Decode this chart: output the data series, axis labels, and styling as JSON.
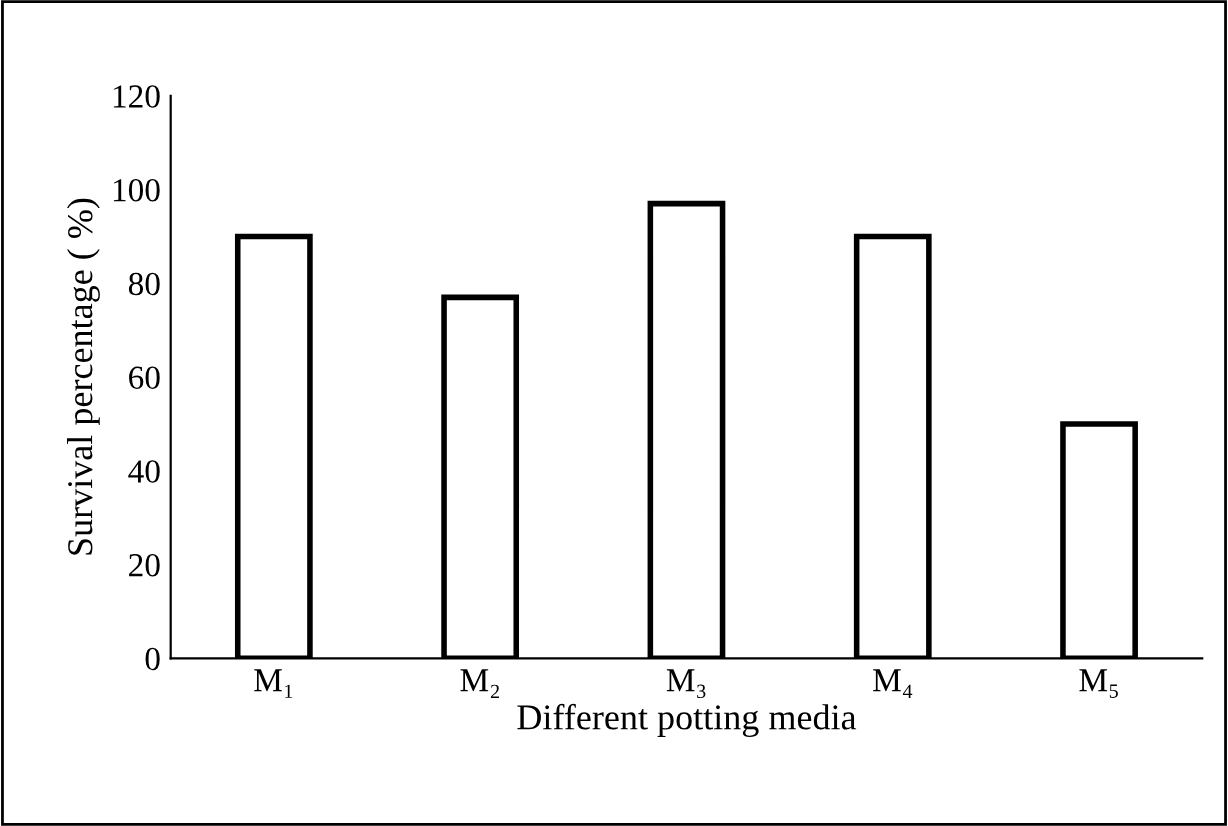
{
  "chart_data": {
    "type": "bar",
    "xlabel": "Different potting media",
    "ylabel": "Survival percentage ( %)",
    "categories": [
      "M₁",
      "M₂",
      "M₃",
      "M₄",
      "M₅"
    ],
    "series": [
      {
        "color": "#ffffff",
        "values": [
          90,
          77,
          97,
          90,
          50
        ]
      }
    ],
    "ylim": [
      0,
      120
    ],
    "yticks": [
      0,
      20,
      40,
      60,
      80,
      100,
      120
    ],
    "grid": false,
    "legend": false
  }
}
